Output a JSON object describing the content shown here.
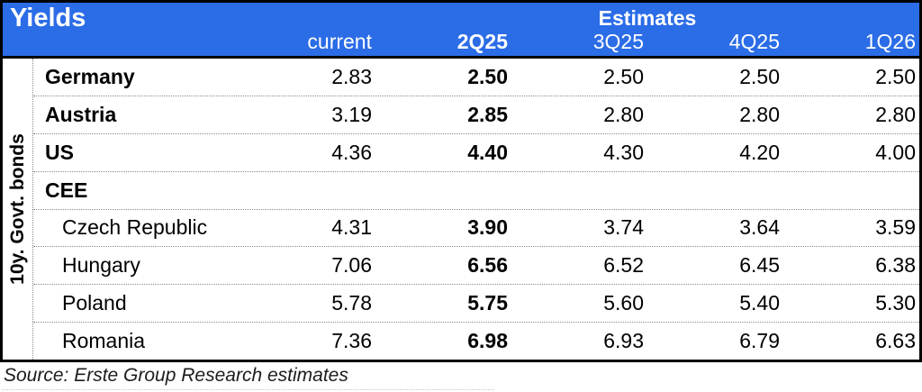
{
  "chart_data": {
    "type": "table",
    "title": "Yields",
    "estimates_header": "Estimates",
    "row_group_label": "10y. Govt. bonds",
    "columns": [
      "current",
      "2Q25",
      "3Q25",
      "4Q25",
      "1Q26"
    ],
    "bold_column": "2Q25",
    "rows": [
      {
        "name": "Germany",
        "values": [
          "2.83",
          "2.50",
          "2.50",
          "2.50",
          "2.50"
        ]
      },
      {
        "name": "Austria",
        "values": [
          "3.19",
          "2.85",
          "2.80",
          "2.80",
          "2.80"
        ]
      },
      {
        "name": "US",
        "values": [
          "4.36",
          "4.40",
          "4.30",
          "4.20",
          "4.00"
        ]
      },
      {
        "name": "CEE",
        "values": [
          "",
          "",
          "",
          "",
          ""
        ]
      },
      {
        "name": "Czech Republic",
        "values": [
          "4.31",
          "3.90",
          "3.74",
          "3.64",
          "3.59"
        ]
      },
      {
        "name": "Hungary",
        "values": [
          "7.06",
          "6.56",
          "6.52",
          "6.45",
          "6.38"
        ]
      },
      {
        "name": "Poland",
        "values": [
          "5.78",
          "5.75",
          "5.60",
          "5.40",
          "5.30"
        ]
      },
      {
        "name": "Romania",
        "values": [
          "7.36",
          "6.98",
          "6.93",
          "6.79",
          "6.63"
        ]
      }
    ],
    "source": "Source: Erste Group Research estimates"
  },
  "colors": {
    "header_blue": "#2B6CE7",
    "border_black": "#000000",
    "separator_gray": "#8a8a8a"
  }
}
